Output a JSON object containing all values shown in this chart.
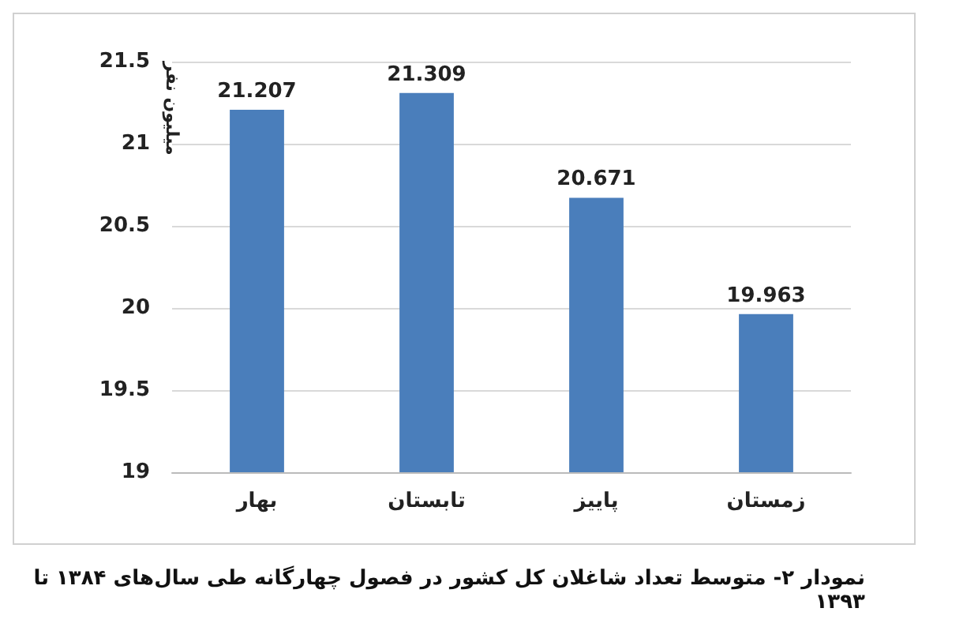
{
  "chart_data": {
    "type": "bar",
    "ylabel": "میلیون نفر",
    "categories": [
      "بهار",
      "تابستان",
      "پاییز",
      "زمستان"
    ],
    "values": [
      21.207,
      21.309,
      20.671,
      19.963
    ],
    "color": "#4a7ebb",
    "ylim": [
      19,
      21.5
    ],
    "yticks": [
      19,
      19.5,
      20,
      20.5,
      21,
      21.5
    ],
    "grid": "y",
    "data_labels": true,
    "annotations": [
      "نمودار ۲- متوسط تعداد شاغلان کل کشور در فصول چهارگانه طی سال‌های ۱۳۸۴ تا ۱۳۹۳"
    ]
  }
}
